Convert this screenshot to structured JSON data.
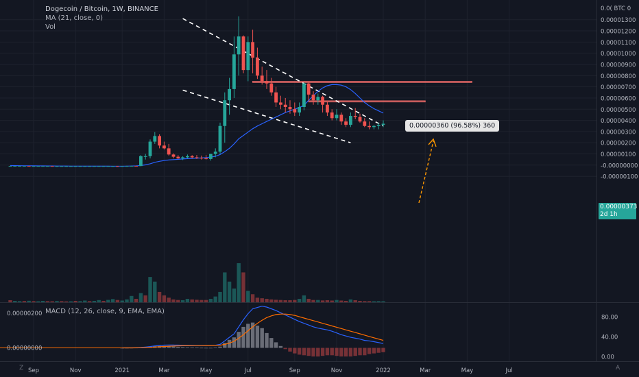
{
  "header": {
    "title": "Dogecoin / Bitcoin, 1W, BINANCE",
    "indicator_ma": "MA (21, close, 0)",
    "indicator_vol": "Vol"
  },
  "macd_label": "MACD (12, 26, close, 9, EMA, EMA)",
  "price_badge": {
    "price": "0.00000373",
    "countdown": "2d 1h"
  },
  "measure_label": "0.00000360 (96.58%) 360",
  "corner_left": "Z",
  "corner_right": "A",
  "colors": {
    "background": "#131722",
    "up": "#26a69a",
    "down": "#ef5350",
    "ma": "#2962ff",
    "signal": "#ff6d00",
    "zone": "#f06c69",
    "measure_arrow": "#ff9800"
  },
  "chart_data": {
    "type": "candlestick",
    "title": "Dogecoin / Bitcoin, 1W, BINANCE",
    "price_axis": {
      "unit": "BTC",
      "range": [
        -1.2e-06,
        1.4e-06
      ],
      "ticks": [
        "0.00000000",
        "0.00001300",
        "0.00001200",
        "0.00001100",
        "0.00001000",
        "0.00000900",
        "0.00000800",
        "0.00000700",
        "0.00000600",
        "0.00000500",
        "0.00000400",
        "0.00000300",
        "0.00000200",
        "0.00000100",
        "-0.00000000",
        "-0.00000100"
      ],
      "tick_values": [
        1.4e-06,
        1.3e-06,
        1.2e-06,
        1.1e-06,
        1e-06,
        9e-07,
        8e-07,
        7e-07,
        6e-07,
        5e-07,
        4e-07,
        3e-07,
        2e-07,
        1e-07,
        0,
        -1e-07
      ],
      "top_label": "0.0( BTC 0"
    },
    "time_axis": {
      "labels": [
        "Sep",
        "Nov",
        "2021",
        "Mar",
        "May",
        "Jul",
        "Sep",
        "Nov",
        "2022",
        "Mar",
        "May",
        "Jul"
      ],
      "bar_index": [
        5,
        14,
        24,
        33,
        42,
        51,
        61,
        70,
        80,
        89,
        98,
        107
      ]
    },
    "candles": {
      "ohlc_scale": 1e-08,
      "start_index": 0,
      "ohlc": [
        [
          -0.7,
          -0.6,
          -0.8,
          -0.7
        ],
        [
          -0.7,
          -0.6,
          -0.8,
          -0.7
        ],
        [
          -0.7,
          -0.6,
          -0.8,
          -0.7
        ],
        [
          -0.7,
          -0.6,
          -0.8,
          -0.7
        ],
        [
          -0.7,
          -0.6,
          -0.9,
          -0.8
        ],
        [
          -0.8,
          -0.7,
          -0.9,
          -0.8
        ],
        [
          -0.8,
          -0.7,
          -0.9,
          -0.8
        ],
        [
          -0.8,
          -0.7,
          -0.9,
          -0.8
        ],
        [
          -0.8,
          -0.7,
          -0.9,
          -0.8
        ],
        [
          -0.8,
          -0.7,
          -1.0,
          -0.9
        ],
        [
          -0.9,
          -0.8,
          -1.0,
          -0.9
        ],
        [
          -0.9,
          -0.8,
          -1.0,
          -0.9
        ],
        [
          -0.9,
          -0.8,
          -1.0,
          -0.9
        ],
        [
          -0.9,
          -0.8,
          -1.0,
          -0.9
        ],
        [
          -0.9,
          -0.8,
          -1.0,
          -0.9
        ],
        [
          -0.9,
          -0.8,
          -1.0,
          -0.9
        ],
        [
          -0.9,
          -0.8,
          -1.0,
          -0.9
        ],
        [
          -0.9,
          -0.8,
          -1.0,
          -0.9
        ],
        [
          -0.9,
          -0.8,
          -1.0,
          -0.9
        ],
        [
          -0.9,
          -0.8,
          -1.0,
          -0.9
        ],
        [
          -0.9,
          -0.8,
          -1.0,
          -0.9
        ],
        [
          -0.9,
          -0.8,
          -1.0,
          -0.9
        ],
        [
          -0.9,
          -0.8,
          -1.0,
          -0.9
        ],
        [
          -0.9,
          -0.8,
          -1.5,
          -1.1
        ],
        [
          -1.1,
          -0.8,
          -1.3,
          -0.9
        ],
        [
          -0.9,
          -0.6,
          -1.0,
          -0.8
        ],
        [
          -0.8,
          -0.5,
          -1.0,
          -0.7
        ],
        [
          -0.7,
          -0.5,
          -1.0,
          -0.8
        ],
        [
          -0.8,
          9.0,
          -1.0,
          8.0
        ],
        [
          8.0,
          10.0,
          5.0,
          8.0
        ],
        [
          8.0,
          23.0,
          6.0,
          21.0
        ],
        [
          21.0,
          29.5,
          19.0,
          26.0
        ],
        [
          26.0,
          27.5,
          15.0,
          17.5
        ],
        [
          17.5,
          21.0,
          14.0,
          15.0
        ],
        [
          15.0,
          19.0,
          8.5,
          9.5
        ],
        [
          9.5,
          10.5,
          6.0,
          7.5
        ],
        [
          7.5,
          9.0,
          5.5,
          6.0
        ],
        [
          6.0,
          8.0,
          4.5,
          7.0
        ],
        [
          7.0,
          9.5,
          6.0,
          8.0
        ],
        [
          8.0,
          9.0,
          6.0,
          7.0
        ],
        [
          7.0,
          9.0,
          5.5,
          6.5
        ],
        [
          6.5,
          8.5,
          5.0,
          6.0
        ],
        [
          6.0,
          9.0,
          5.0,
          5.5
        ],
        [
          5.5,
          10.0,
          4.0,
          10.0
        ],
        [
          10.0,
          15.0,
          7.0,
          12.0
        ],
        [
          12.0,
          38.0,
          10.0,
          35.0
        ],
        [
          35.0,
          65.0,
          20.0,
          58.0
        ],
        [
          58.0,
          78.0,
          45.0,
          68.0
        ],
        [
          68.0,
          115.0,
          60.0,
          99.0
        ],
        [
          99.0,
          133.0,
          80.0,
          115.0
        ],
        [
          115.0,
          116.0,
          82.0,
          85.0
        ],
        [
          85.0,
          115.0,
          75.0,
          110.0
        ],
        [
          110.0,
          121.0,
          82.0,
          96.0
        ],
        [
          96.0,
          105.0,
          77.0,
          80.0
        ],
        [
          80.0,
          88.0,
          72.0,
          75.0
        ],
        [
          75.0,
          85.0,
          68.0,
          73.0
        ],
        [
          73.0,
          78.0,
          62.0,
          65.0
        ],
        [
          65.0,
          70.0,
          52.0,
          56.0
        ],
        [
          56.0,
          62.0,
          50.0,
          54.0
        ],
        [
          54.0,
          60.0,
          47.0,
          52.0
        ],
        [
          52.0,
          58.0,
          46.0,
          50.0
        ],
        [
          50.0,
          56.0,
          44.0,
          47.0
        ],
        [
          47.0,
          56.0,
          44.0,
          52.0
        ],
        [
          52.0,
          74.0,
          49.0,
          73.0
        ],
        [
          73.0,
          74.0,
          58.0,
          63.0
        ],
        [
          63.0,
          66.0,
          54.0,
          58.0
        ],
        [
          58.0,
          64.0,
          54.0,
          61.0
        ],
        [
          61.0,
          62.0,
          47.0,
          54.0
        ],
        [
          54.0,
          57.0,
          44.0,
          47.0
        ],
        [
          47.0,
          50.0,
          40.0,
          42.0
        ],
        [
          42.0,
          50.0,
          40.0,
          45.0
        ],
        [
          45.0,
          47.0,
          36.0,
          39.0
        ],
        [
          39.0,
          42.0,
          34.0,
          36.0
        ],
        [
          36.0,
          47.0,
          34.0,
          44.0
        ],
        [
          44.0,
          51.0,
          41.0,
          43.0
        ],
        [
          43.0,
          46.0,
          38.0,
          39.0
        ],
        [
          39.0,
          42.0,
          34.0,
          35.0
        ],
        [
          35.0,
          39.0,
          32.0,
          34.0
        ],
        [
          34.0,
          36.0,
          32.0,
          35.0
        ],
        [
          35.0,
          38.0,
          32.0,
          36.0
        ],
        [
          36.0,
          40.0,
          34.0,
          37.0
        ]
      ]
    },
    "ma21": {
      "value_scale": 1e-08,
      "start_index": 0,
      "values": [
        -0.4,
        -0.45,
        -0.5,
        -0.55,
        -0.6,
        -0.65,
        -0.7,
        -0.72,
        -0.75,
        -0.78,
        -0.8,
        -0.82,
        -0.84,
        -0.86,
        -0.88,
        -0.9,
        -0.91,
        -0.92,
        -0.93,
        -0.94,
        -0.95,
        -0.96,
        -0.97,
        -1.0,
        -0.98,
        -0.9,
        -0.8,
        -0.7,
        -0.3,
        0.2,
        1.2,
        2.5,
        3.4,
        4.1,
        4.6,
        4.9,
        5.2,
        5.5,
        5.8,
        6.0,
        6.2,
        6.4,
        6.7,
        7.2,
        7.9,
        9.5,
        12.0,
        15.0,
        19.0,
        23.5,
        26.5,
        29.5,
        32.5,
        35.0,
        37.0,
        39.0,
        41.0,
        43.0,
        45.0,
        47.0,
        48.5,
        50.0,
        51.5,
        53.5,
        58.0,
        62.0,
        66.0,
        69.0,
        71.0,
        72.0,
        72.0,
        71.5,
        70.0,
        67.5,
        64.0,
        60.0,
        56.0,
        53.0,
        50.5,
        48.5,
        46.5
      ]
    },
    "zones": [
      {
        "from_index": 52,
        "to_index": 99,
        "value_low": 7.392e-07,
        "value_high": 7.492e-07
      },
      {
        "from_index": 64,
        "to_index": 89,
        "value_low": 5.65e-07,
        "value_high": 5.75e-07
      }
    ],
    "trendlines": [
      {
        "from_index": 37,
        "from_value": 1.31e-06,
        "to_index": 80,
        "to_value": 3.5e-07
      },
      {
        "from_index": 37,
        "from_value": 6.7e-07,
        "to_index": 73,
        "to_value": 2e-07
      }
    ],
    "measurement": {
      "from_value": 3.73e-06,
      "to_value": 7.33e-06,
      "change": 3.6e-06,
      "change_pct": 96.58,
      "ticks": 360
    },
    "last_price": 3.73e-06,
    "volume": {
      "values": [
        1.8,
        1.2,
        1.0,
        1.1,
        1.3,
        1.0,
        0.9,
        1.2,
        1.0,
        0.9,
        1.1,
        1.0,
        0.8,
        0.9,
        1.2,
        1.0,
        1.5,
        1.0,
        1.2,
        1.9,
        1.2,
        2.1,
        2.8,
        2.0,
        1.5,
        2.5,
        5.5,
        3.0,
        8.0,
        6.0,
        22.0,
        18.0,
        9.0,
        6.0,
        4.0,
        2.5,
        2.0,
        1.8,
        3.0,
        2.5,
        2.2,
        2.0,
        2.0,
        3.0,
        5.0,
        9.0,
        26.0,
        18.0,
        12.0,
        34.0,
        26.0,
        10.0,
        7.0,
        4.0,
        3.5,
        3.0,
        2.5,
        2.2,
        2.0,
        1.8,
        1.8,
        2.0,
        3.0,
        6.0,
        3.0,
        2.0,
        2.0,
        1.6,
        1.8,
        1.5,
        2.0,
        1.5,
        1.2,
        2.5,
        1.8,
        1.2,
        1.0,
        1.0,
        0.9,
        1.0,
        0.9
      ],
      "up": [
        false,
        true,
        true,
        false,
        true,
        false,
        true,
        true,
        false,
        false,
        true,
        false,
        false,
        true,
        false,
        true,
        true,
        false,
        true,
        true,
        false,
        true,
        true,
        false,
        true,
        true,
        true,
        false,
        true,
        false,
        true,
        true,
        false,
        false,
        false,
        false,
        false,
        true,
        true,
        false,
        false,
        false,
        false,
        true,
        true,
        true,
        true,
        true,
        true,
        true,
        false,
        true,
        false,
        false,
        false,
        false,
        false,
        false,
        false,
        false,
        false,
        false,
        true,
        true,
        false,
        false,
        true,
        false,
        false,
        false,
        true,
        false,
        false,
        true,
        false,
        false,
        false,
        false,
        true,
        true,
        true
      ]
    },
    "macd_panel": {
      "left_axis": {
        "ticks": [
          "0.00000200",
          "0.00000000"
        ],
        "tick_values": [
          2e-07,
          0.0
        ]
      },
      "right_axis": {
        "range": [
          -5,
          100
        ],
        "ticks": [
          "80.00",
          "40.00",
          "0.00"
        ],
        "tick_values": [
          80,
          40,
          0
        ]
      },
      "start_index": 24,
      "macd": [
        0.0,
        0.1,
        0.2,
        0.4,
        1.0,
        1.8,
        3.0,
        4.5,
        5.5,
        6.2,
        6.5,
        6.4,
        6.2,
        6.0,
        5.8,
        5.6,
        5.5,
        5.4,
        5.4,
        5.5,
        6.0,
        8.0,
        16.0,
        24.0,
        32.0,
        48.0,
        64.0,
        78.0,
        89.0,
        92.0,
        95.0,
        93.0,
        89.0,
        85.0,
        80.0,
        75.0,
        70.0,
        65.0,
        60.0,
        56.0,
        52.0,
        48.0,
        45.0,
        43.0,
        41.0,
        38.0,
        34.0,
        30.0,
        27.0,
        24.0,
        22.0,
        20.0,
        17.0,
        16.0,
        14.0,
        12.0,
        10.0
      ],
      "signal": [
        0.0,
        0.03,
        0.06,
        0.15,
        0.35,
        0.7,
        1.2,
        1.8,
        2.5,
        3.2,
        3.8,
        4.2,
        4.6,
        4.8,
        4.9,
        5.0,
        5.1,
        5.2,
        5.3,
        5.4,
        5.6,
        6.0,
        8.0,
        11.0,
        15.0,
        22.0,
        30.0,
        39.0,
        48.0,
        56.0,
        63.0,
        69.0,
        73.0,
        76.0,
        77.0,
        77.0,
        76.0,
        74.0,
        71.0,
        68.0,
        65.0,
        62.0,
        59.0,
        56.0,
        53.0,
        50.0,
        47.0,
        44.0,
        41.0,
        38.0,
        35.0,
        32.0,
        29.0,
        26.0,
        23.0,
        20.0,
        17.0
      ]
    }
  }
}
